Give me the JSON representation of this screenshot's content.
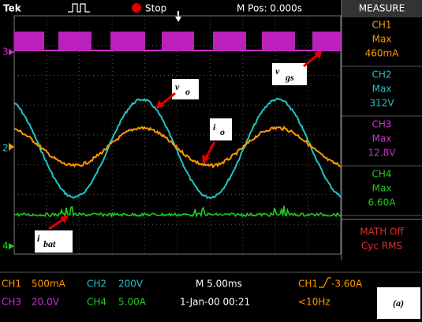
{
  "top": {
    "brand": "Tek",
    "status": "Stop",
    "position": "M Pos: 0.000s"
  },
  "measure": {
    "title": "MEASURE",
    "items": [
      {
        "channel": "CH1",
        "stat": "Max",
        "value": "460mA"
      },
      {
        "channel": "CH2",
        "stat": "Max",
        "value": "312V"
      },
      {
        "channel": "CH3",
        "stat": "Max",
        "value": "12.8V"
      },
      {
        "channel": "CH4",
        "stat": "Max",
        "value": "6.60A"
      }
    ],
    "math": "MATH Off",
    "mode": "Cyc RMS"
  },
  "channel_markers": [
    "3",
    "2",
    "4"
  ],
  "annotations": [
    {
      "main": "v",
      "sub": "o"
    },
    {
      "main": "i",
      "sub": "o"
    },
    {
      "main": "v",
      "sub": "gs"
    },
    {
      "main": "i",
      "sub": "bat"
    }
  ],
  "footer": {
    "ch1": {
      "name": "CH1",
      "scale": "500mA"
    },
    "ch2": {
      "name": "CH2",
      "scale": "200V"
    },
    "ch3": {
      "name": "CH3",
      "scale": "20.0V"
    },
    "ch4": {
      "name": "CH4",
      "scale": "5.00A"
    },
    "timebase": "M 5.00ms",
    "date": "1-Jan-00 00:21",
    "trigger": {
      "source": "CH1",
      "level": "-3.60A"
    },
    "frequency": "<10Hz"
  },
  "figure_label": "(a)"
}
